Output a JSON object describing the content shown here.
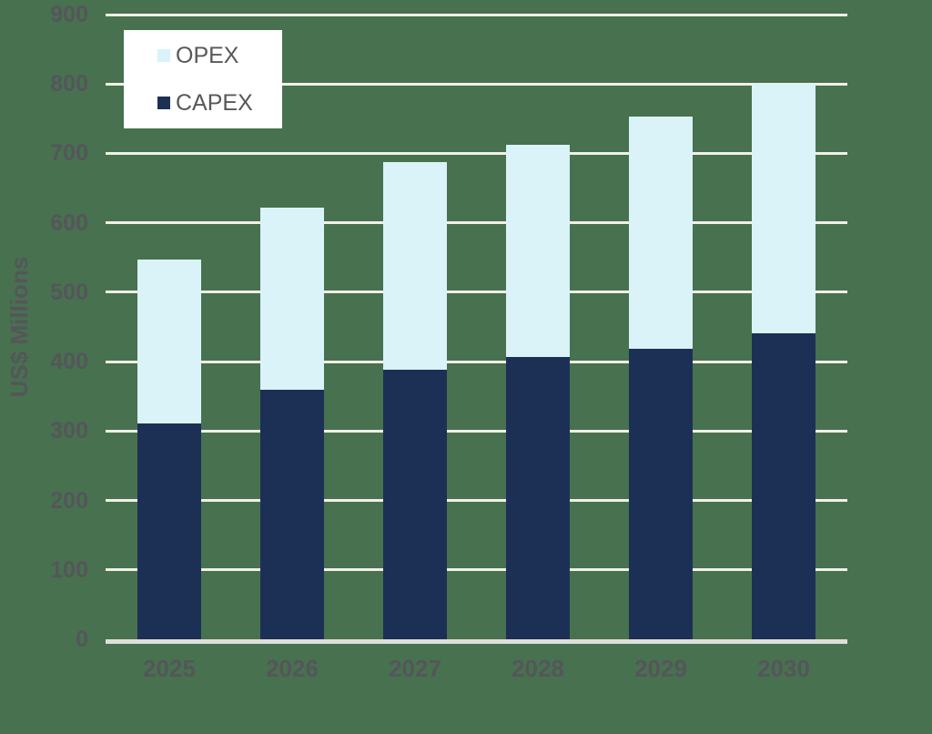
{
  "chart_data": {
    "type": "bar",
    "stacked": true,
    "title": "",
    "categories": [
      "2025",
      "2026",
      "2027",
      "2028",
      "2029",
      "2030"
    ],
    "series": [
      {
        "name": "CAPEX",
        "color": "#1C3056",
        "values": [
          311,
          359,
          388,
          407,
          419,
          441
        ]
      },
      {
        "name": "OPEX",
        "color": "#D9F3F8",
        "values": [
          236,
          263,
          300,
          305,
          334,
          359
        ]
      }
    ],
    "totals": [
      547,
      622,
      688,
      712,
      753,
      800
    ],
    "xlabel": "",
    "ylabel": "US$ Millions",
    "ylim": [
      0,
      900
    ],
    "ytick_step": 100,
    "yticks": [
      0,
      100,
      200,
      300,
      400,
      500,
      600,
      700,
      800,
      900
    ],
    "grid": true,
    "legend": {
      "position": "top-left",
      "entries": [
        {
          "label": "OPEX",
          "color": "#D9F3F8"
        },
        {
          "label": "CAPEX",
          "color": "#1C3056"
        }
      ]
    },
    "colors": {
      "background": "#48714F",
      "gridline": "#F2EFE8",
      "axis_line": "#DDDFD8",
      "tick_text": "#54565A",
      "legend_text": "#58585B",
      "legend_bg": "#FFFFFF"
    }
  }
}
